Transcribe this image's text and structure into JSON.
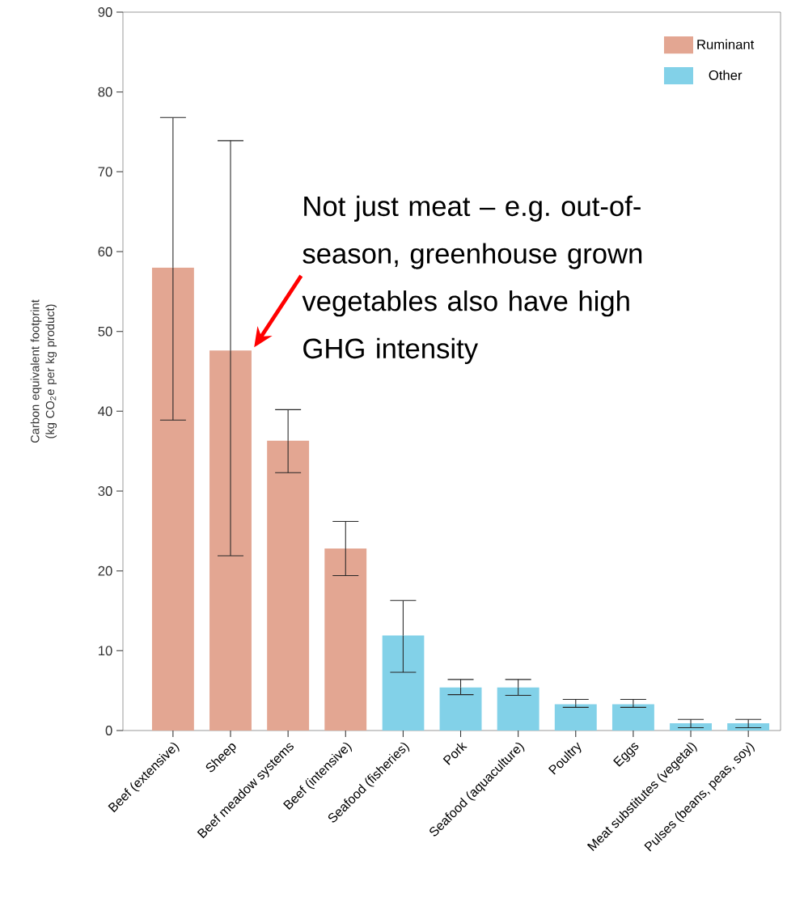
{
  "chart_data": {
    "type": "bar",
    "ylabel": "Carbon equivalent footprint (kg CO$_{2}$e per kg product)",
    "categories": [
      "Beef (extensive)",
      "Sheep",
      "Beef meadow systems",
      "Beef (intensive)",
      "Seafood (fisheries)",
      "Pork",
      "Seafood (aquaculture)",
      "Poultry",
      "Eggs",
      "Meat substitutes (vegetal)",
      "Pulses (beans, peas, soy)"
    ],
    "series": [
      {
        "name": "Ruminant",
        "color": "#e3a692",
        "values": [
          58.0,
          47.6,
          36.3,
          22.8,
          null,
          null,
          null,
          null,
          null,
          null,
          null
        ],
        "errors": [
          [
            38.9,
            76.8
          ],
          [
            21.9,
            73.9
          ],
          [
            32.3,
            40.2
          ],
          [
            19.4,
            26.2
          ],
          null,
          null,
          null,
          null,
          null,
          null,
          null
        ]
      },
      {
        "name": "Other",
        "color": "#82d1e8",
        "values": [
          null,
          null,
          null,
          null,
          11.9,
          5.4,
          5.4,
          3.3,
          3.3,
          0.9,
          0.9
        ],
        "errors": [
          null,
          null,
          null,
          null,
          [
            7.3,
            16.3
          ],
          [
            4.5,
            6.4
          ],
          [
            4.4,
            6.4
          ],
          [
            2.9,
            3.9
          ],
          [
            2.9,
            3.9
          ],
          [
            0.35,
            1.4
          ],
          [
            0.35,
            1.4
          ]
        ]
      }
    ],
    "ylim": [
      0,
      90
    ],
    "yticks": [
      0,
      10,
      20,
      30,
      40,
      50,
      60,
      70,
      80,
      90
    ],
    "legend": "top right",
    "annotations": [
      {
        "text": "Not just meat – e.g. out-of-season, greenhouse grown vegetables also have high GHG intensity",
        "x": "Sheep",
        "y": 47.6
      }
    ]
  }
}
